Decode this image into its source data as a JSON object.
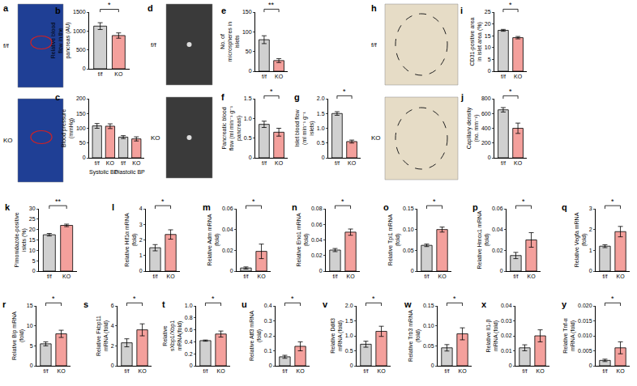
{
  "chart_data": [
    {
      "panel": "b",
      "type": "bar",
      "y_label": "Relative blood flow in the pancreas (AU)",
      "categories": [
        "f/f",
        "KO"
      ],
      "values": [
        1130,
        880
      ],
      "errors": [
        90,
        70
      ],
      "colors": [
        "#d0d0d0",
        "#f4a09c"
      ],
      "ylim": [
        0,
        1500
      ],
      "yticks": [
        0,
        500,
        1000,
        1500
      ],
      "significance": "*"
    },
    {
      "panel": "c",
      "type": "bar",
      "y_label": "Blood pressure (mmHg)",
      "categories": [
        "f/f",
        "KO",
        "f/f",
        "KO"
      ],
      "group_labels": [
        "Systolic BP",
        "Diastolic BP"
      ],
      "values": [
        108,
        107,
        70,
        64
      ],
      "errors": [
        8,
        8,
        5,
        7
      ],
      "colors": [
        "#d0d0d0",
        "#f4a09c",
        "#d0d0d0",
        "#f4a09c"
      ],
      "ylim": [
        0,
        200
      ],
      "yticks": [
        0,
        50,
        100,
        150,
        200
      ]
    },
    {
      "panel": "e",
      "type": "bar",
      "y_label": "No. of microspheres in islets",
      "categories": [
        "f/f",
        "KO"
      ],
      "values": [
        80,
        27
      ],
      "errors": [
        10,
        5
      ],
      "colors": [
        "#d0d0d0",
        "#f4a09c"
      ],
      "ylim": [
        0,
        150
      ],
      "yticks": [
        0,
        50,
        100,
        150
      ],
      "significance": "**"
    },
    {
      "panel": "f",
      "type": "bar",
      "y_label": "Pancreatic blood flow (ml min⁻¹ g⁻¹ pancreas)",
      "categories": [
        "f/f",
        "KO"
      ],
      "values": [
        0.85,
        0.65
      ],
      "errors": [
        0.08,
        0.1
      ],
      "colors": [
        "#d0d0d0",
        "#f4a09c"
      ],
      "ylim": [
        0,
        1.5
      ],
      "yticks": [
        0,
        0.5,
        {
          "value": 1,
          "label": "1.0"
        },
        1.5
      ],
      "significance": "*"
    },
    {
      "panel": "g",
      "type": "bar",
      "y_label": "Islet blood flow (ml min⁻¹ g⁻¹ islets)",
      "categories": [
        "f/f",
        "KO"
      ],
      "values": [
        1.5,
        0.55
      ],
      "errors": [
        0.06,
        0.05
      ],
      "colors": [
        "#d0d0d0",
        "#f4a09c"
      ],
      "ylim": [
        0,
        2
      ],
      "yticks": [
        0,
        0.5,
        {
          "value": 1,
          "label": "1.0"
        },
        1.5,
        {
          "value": 2,
          "label": "2.0"
        }
      ],
      "significance": "*"
    },
    {
      "panel": "i",
      "type": "bar",
      "y_label": "CD31-positive area in islet area (%)",
      "categories": [
        "f/f",
        "KO"
      ],
      "values": [
        17.3,
        14.2
      ],
      "errors": [
        0.4,
        0.5
      ],
      "colors": [
        "#d0d0d0",
        "#f4a09c"
      ],
      "ylim": [
        0,
        25
      ],
      "yticks": [
        0,
        5,
        10,
        15,
        20,
        25
      ],
      "significance": "*"
    },
    {
      "panel": "j",
      "type": "bar",
      "y_label": "Capillary density (no. mm⁻²)",
      "categories": [
        "f/f",
        "KO"
      ],
      "values": [
        650,
        400
      ],
      "errors": [
        30,
        70
      ],
      "colors": [
        "#d0d0d0",
        "#f4a09c"
      ],
      "ylim": [
        0,
        800
      ],
      "yticks": [
        0,
        200,
        400,
        600,
        800
      ],
      "significance": "*"
    },
    {
      "panel": "k",
      "type": "bar",
      "y_label": "Pimonidazole-positive islets (%)",
      "categories": [
        "f/f",
        "KO"
      ],
      "values": [
        17.5,
        22
      ],
      "errors": [
        0.6,
        0.6
      ],
      "colors": [
        "#d0d0d0",
        "#f4a09c"
      ],
      "ylim": [
        0,
        30
      ],
      "yticks": [
        0,
        5,
        10,
        15,
        20,
        25,
        30
      ],
      "significance": "**"
    },
    {
      "panel": "l",
      "type": "bar",
      "y_label": "Relative Hif1α mRNA (fold)",
      "categories": [
        "f/f",
        "KO"
      ],
      "values": [
        1.5,
        2.35
      ],
      "errors": [
        0.2,
        0.3
      ],
      "colors": [
        "#d0d0d0",
        "#f4a09c"
      ],
      "ylim": [
        0,
        4
      ],
      "yticks": [
        0,
        1,
        2,
        3,
        4
      ],
      "significance": "*"
    },
    {
      "panel": "m",
      "type": "bar",
      "y_label": "Relative Adm mRNA (fold)",
      "categories": [
        "f/f",
        "KO"
      ],
      "values": [
        0.003,
        0.019
      ],
      "errors": [
        0.001,
        0.007
      ],
      "colors": [
        "#d0d0d0",
        "#f4a09c"
      ],
      "ylim": [
        0,
        0.06
      ],
      "yticks": [
        0,
        0.02,
        0.04,
        0.06
      ],
      "significance": "*"
    },
    {
      "panel": "n",
      "type": "bar",
      "y_label": "Relative Eno1 mRNA (fold)",
      "categories": [
        "f/f",
        "KO"
      ],
      "values": [
        0.027,
        0.05
      ],
      "errors": [
        0.002,
        0.004
      ],
      "colors": [
        "#d0d0d0",
        "#f4a09c"
      ],
      "ylim": [
        0,
        0.08
      ],
      "yticks": [
        0,
        0.02,
        0.04,
        0.06,
        0.08
      ],
      "significance": "*"
    },
    {
      "panel": "o",
      "type": "bar",
      "y_label": "Relative Tpi1 mRNA (fold)",
      "categories": [
        "f/f",
        "KO"
      ],
      "values": [
        0.062,
        0.1
      ],
      "errors": [
        0.003,
        0.006
      ],
      "colors": [
        "#d0d0d0",
        "#f4a09c"
      ],
      "ylim": [
        0,
        0.15
      ],
      "yticks": [
        0,
        0.05,
        {
          "value": 0.1,
          "label": "0.10"
        },
        0.15
      ],
      "significance": "*"
    },
    {
      "panel": "p",
      "type": "bar",
      "y_label": "Relative Hmox1 mRNA (fold)",
      "categories": [
        "f/f",
        "KO"
      ],
      "values": [
        0.015,
        0.03
      ],
      "errors": [
        0.003,
        0.007
      ],
      "colors": [
        "#d0d0d0",
        "#f4a09c"
      ],
      "ylim": [
        0,
        0.06
      ],
      "yticks": [
        0,
        0.02,
        0.04,
        0.06
      ],
      "significance": "*"
    },
    {
      "panel": "q",
      "type": "bar",
      "y_label": "Relative Vegfa mRNA (fold)",
      "categories": [
        "f/f",
        "KO"
      ],
      "values": [
        1.2,
        1.9
      ],
      "errors": [
        0.07,
        0.25
      ],
      "colors": [
        "#d0d0d0",
        "#f4a09c"
      ],
      "ylim": [
        0,
        3
      ],
      "yticks": [
        0,
        1,
        2,
        3
      ],
      "significance": "*"
    },
    {
      "panel": "r",
      "type": "bar",
      "y_label": "Relative Bip mRNA (fold)",
      "categories": [
        "f/f",
        "KO"
      ],
      "values": [
        5.5,
        8
      ],
      "errors": [
        0.5,
        0.9
      ],
      "colors": [
        "#d0d0d0",
        "#f4a09c"
      ],
      "ylim": [
        0,
        15
      ],
      "yticks": [
        0,
        5,
        10,
        15
      ],
      "significance": "*"
    },
    {
      "panel": "s",
      "type": "bar",
      "y_label": "Relative Fkbp11 mRNA (fold)",
      "categories": [
        "f/f",
        "KO"
      ],
      "values": [
        2.3,
        3.6
      ],
      "errors": [
        0.4,
        0.6
      ],
      "colors": [
        "#d0d0d0",
        "#f4a09c"
      ],
      "ylim": [
        0,
        6
      ],
      "yticks": [
        0,
        2,
        4,
        6
      ],
      "significance": "*"
    },
    {
      "panel": "t",
      "type": "bar",
      "y_label": "Relative sXbp1/Xbp1 mRNA(fold)",
      "categories": [
        "f/f",
        "KO"
      ],
      "values": [
        0.42,
        0.53
      ],
      "errors": [
        0.01,
        0.05
      ],
      "colors": [
        "#d0d0d0",
        "#f4a09c"
      ],
      "ylim": [
        0,
        1
      ],
      "yticks": [
        0,
        0.2,
        0.4,
        0.6,
        0.8,
        {
          "value": 1,
          "label": "1.0"
        }
      ],
      "significance": "*"
    },
    {
      "panel": "u",
      "type": "bar",
      "y_label": "Relative Atf3 mRNA (fold)",
      "categories": [
        "f/f",
        "KO"
      ],
      "values": [
        0.06,
        0.13
      ],
      "errors": [
        0.01,
        0.03
      ],
      "colors": [
        "#d0d0d0",
        "#f4a09c"
      ],
      "ylim": [
        0,
        0.4
      ],
      "yticks": [
        0,
        0.1,
        0.2,
        0.3,
        0.4
      ],
      "significance": "*"
    },
    {
      "panel": "v",
      "type": "bar",
      "y_label": "Relative Ddit3 mRNA (fold)",
      "categories": [
        "f/f",
        "KO"
      ],
      "values": [
        0.72,
        1.15
      ],
      "errors": [
        0.1,
        0.17
      ],
      "colors": [
        "#d0d0d0",
        "#f4a09c"
      ],
      "ylim": [
        0,
        2
      ],
      "yticks": [
        0,
        0.5,
        {
          "value": 1,
          "label": "1.0"
        },
        1.5,
        {
          "value": 2,
          "label": "2.0"
        }
      ],
      "significance": "*"
    },
    {
      "panel": "w",
      "type": "bar",
      "y_label": "Relative Trb3 mRNA (fold)",
      "categories": [
        "f/f",
        "KO"
      ],
      "values": [
        0.045,
        0.08
      ],
      "errors": [
        0.008,
        0.015
      ],
      "colors": [
        "#d0d0d0",
        "#f4a09c"
      ],
      "ylim": [
        0,
        0.15
      ],
      "yticks": [
        0,
        0.05,
        {
          "value": 0.1,
          "label": "0.10"
        },
        0.15
      ],
      "significance": "*"
    },
    {
      "panel": "x",
      "type": "bar",
      "y_label": "Relative Il1-β mRNA (fold)",
      "categories": [
        "f/f",
        "KO"
      ],
      "values": [
        0.012,
        0.02
      ],
      "errors": [
        0.002,
        0.004
      ],
      "colors": [
        "#d0d0d0",
        "#f4a09c"
      ],
      "ylim": [
        0,
        0.04
      ],
      "yticks": [
        0,
        0.01,
        0.02,
        0.03,
        0.04
      ]
    },
    {
      "panel": "y",
      "type": "bar",
      "y_label": "Relative Tnf-α mRNA (fold)",
      "categories": [
        "f/f",
        "KO"
      ],
      "values": [
        0.0018,
        0.006
      ],
      "errors": [
        0.0004,
        0.002
      ],
      "colors": [
        "#d0d0d0",
        "#f4a09c"
      ],
      "ylim": [
        0,
        0.02
      ],
      "yticks": [
        0,
        0.005,
        {
          "value": 0.01,
          "label": "0.010"
        },
        0.015,
        {
          "value": 0.02,
          "label": "0.020"
        }
      ],
      "significance": "*"
    }
  ],
  "images": [
    {
      "panel": "a",
      "labels": [
        "f/f",
        "KO"
      ]
    },
    {
      "panel": "d",
      "labels": [
        "f/f",
        "KO"
      ]
    },
    {
      "panel": "h",
      "labels": [
        "f/f",
        "KO"
      ]
    }
  ]
}
